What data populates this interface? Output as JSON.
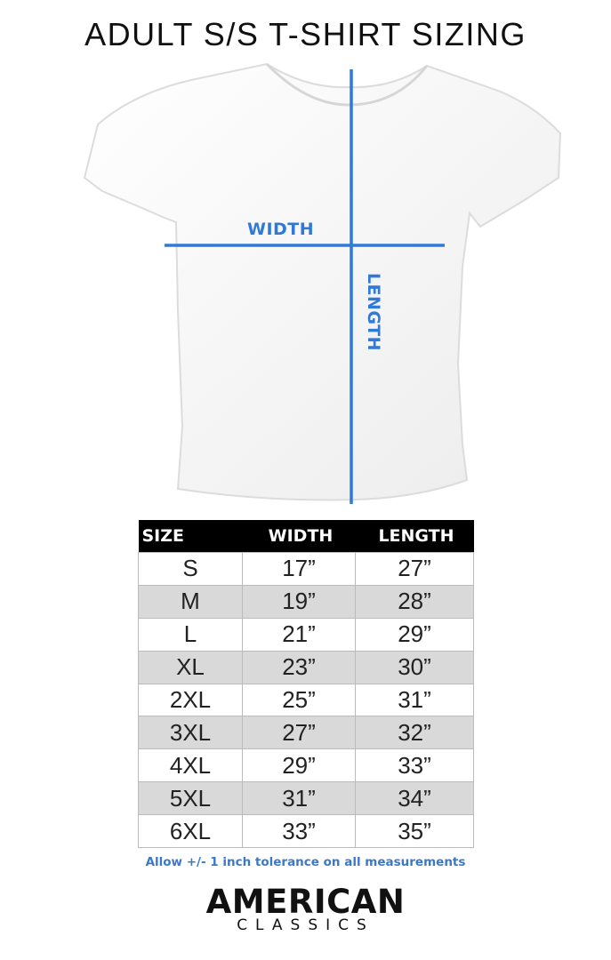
{
  "title": "ADULT S/S T-SHIRT SIZING",
  "diagram": {
    "width_label": "WIDTH",
    "length_label": "LENGTH",
    "line_color": "#2f7ad8"
  },
  "table": {
    "headers": [
      "SIZE",
      "WIDTH",
      "LENGTH"
    ],
    "rows": [
      [
        "S",
        "17”",
        "27”"
      ],
      [
        "M",
        "19”",
        "28”"
      ],
      [
        "L",
        "21”",
        "29”"
      ],
      [
        "XL",
        "23”",
        "30”"
      ],
      [
        "2XL",
        "25”",
        "31”"
      ],
      [
        "3XL",
        "27”",
        "32”"
      ],
      [
        "4XL",
        "29”",
        "33”"
      ],
      [
        "5XL",
        "31”",
        "34”"
      ],
      [
        "6XL",
        "33”",
        "35”"
      ]
    ]
  },
  "note": "Allow +/- 1 inch tolerance on all measurements",
  "brand": {
    "line1": "AMERICAN",
    "line2": "CLASSICS"
  }
}
